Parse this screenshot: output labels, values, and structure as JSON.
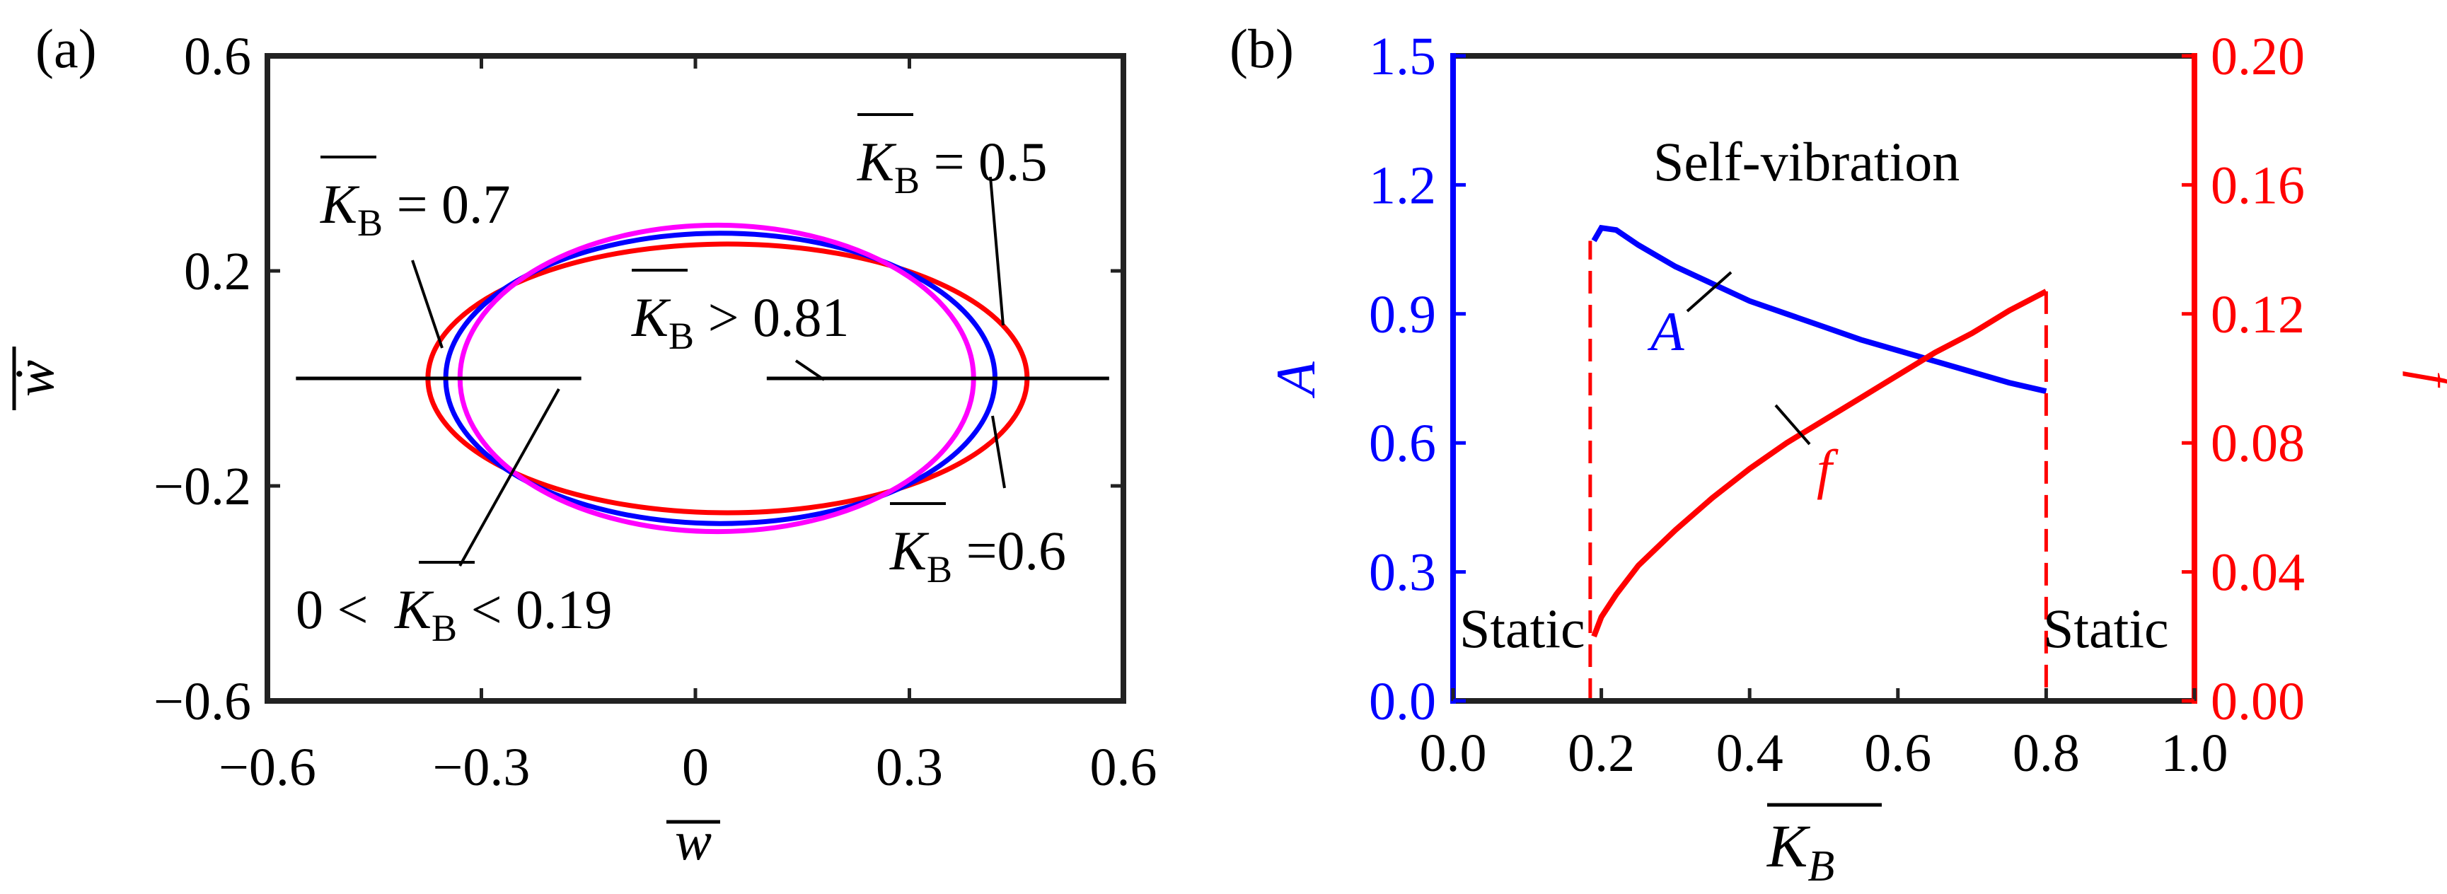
{
  "chart_data": [
    {
      "panel": "(a)",
      "type": "line",
      "xlabel": "w",
      "ylabel": "ẇ",
      "xlim": [
        -0.6,
        0.6
      ],
      "ylim": [
        -0.6,
        0.6
      ],
      "xticks": [
        "−0.6",
        "−0.3",
        "0",
        "0.3",
        "0.6"
      ],
      "yticks": [
        "0.6",
        "0.2",
        "−0.2",
        "−0.6"
      ],
      "grid": false,
      "series": [
        {
          "name": "K_B = 0.5",
          "color": "#ff0000",
          "cx": 0.045,
          "rx": 0.42,
          "ry": 0.25
        },
        {
          "name": "K_B = 0.6",
          "color": "#0000ff",
          "cx": 0.035,
          "rx": 0.385,
          "ry": 0.27
        },
        {
          "name": "K_B = 0.7",
          "color": "#ff00ff",
          "cx": 0.03,
          "rx": 0.36,
          "ry": 0.285
        },
        {
          "name": "0 < K_B < 0.19",
          "color": "#000000",
          "x": [
            -0.56,
            -0.16
          ],
          "y": [
            0,
            0
          ]
        },
        {
          "name": "K_B > 0.81",
          "color": "#000000",
          "x": [
            0.1,
            0.58
          ],
          "y": [
            0,
            0
          ]
        }
      ],
      "annotations": [
        {
          "sym": "K",
          "sub": "B",
          "pre": "",
          "post": " = 0.7"
        },
        {
          "sym": "K",
          "sub": "B",
          "pre": "",
          "post": " = 0.5"
        },
        {
          "sym": "K",
          "sub": "B",
          "pre": "",
          "post": " > 0.81"
        },
        {
          "sym": "K",
          "sub": "B",
          "pre": "",
          "post": " =0.6"
        },
        {
          "sym": "K",
          "sub": "B",
          "pre": "0 < ",
          "post": " < 0.19"
        }
      ]
    },
    {
      "panel": "(b)",
      "type": "line",
      "xlabel": "K",
      "xlabel_sub": "B",
      "ylabel_left": "A",
      "ylabel_right": "f",
      "xlim": [
        0,
        1
      ],
      "ylim_left": [
        0,
        1.5
      ],
      "ylim_right": [
        0,
        0.2
      ],
      "xticks": [
        "0.0",
        "0.2",
        "0.4",
        "0.6",
        "0.8",
        "1.0"
      ],
      "yticks_left": [
        "0.0",
        "0.3",
        "0.6",
        "0.9",
        "1.2",
        "1.5"
      ],
      "yticks_right": [
        "0.00",
        "0.04",
        "0.08",
        "0.12",
        "0.16",
        "0.20"
      ],
      "colors": {
        "left": "#0000ff",
        "right": "#ff0000"
      },
      "series": [
        {
          "name": "A",
          "axis": "left",
          "color": "#0000ff",
          "x": [
            0.19,
            0.2,
            0.22,
            0.25,
            0.3,
            0.35,
            0.4,
            0.45,
            0.5,
            0.55,
            0.6,
            0.65,
            0.7,
            0.75,
            0.8
          ],
          "y": [
            1.07,
            1.1,
            1.095,
            1.06,
            1.01,
            0.97,
            0.93,
            0.9,
            0.87,
            0.84,
            0.815,
            0.79,
            0.765,
            0.74,
            0.72
          ]
        },
        {
          "name": "f",
          "axis": "right",
          "color": "#ff0000",
          "x": [
            0,
            0.185,
            0.19,
            0.2,
            0.22,
            0.25,
            0.3,
            0.35,
            0.4,
            0.45,
            0.5,
            0.55,
            0.6,
            0.65,
            0.7,
            0.75,
            0.8,
            0.81,
            1.0
          ],
          "y": [
            0,
            0,
            0.02,
            0.026,
            0.033,
            0.042,
            0.053,
            0.063,
            0.072,
            0.08,
            0.087,
            0.094,
            0.101,
            0.108,
            0.114,
            0.121,
            0.127,
            0,
            0
          ]
        }
      ],
      "annotations": {
        "self_vibration": "Self-vibration",
        "static_left": "Static",
        "static_right": "Static",
        "A_label": "A",
        "f_label": "f"
      }
    }
  ]
}
